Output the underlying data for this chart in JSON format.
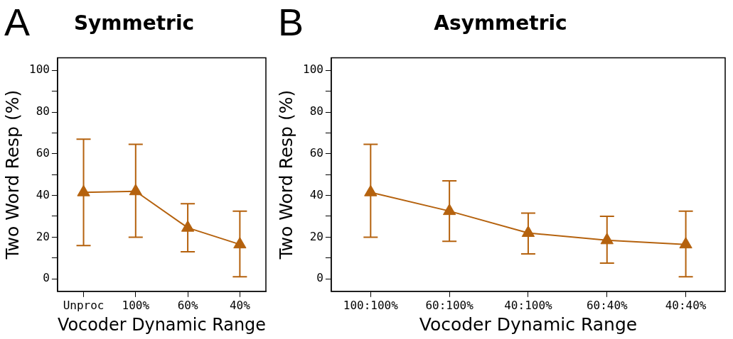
{
  "chart_data": [
    {
      "type": "line",
      "title": "Symmetric",
      "annotations": [
        "A"
      ],
      "xlabel": "Vocoder Dynamic Range",
      "ylabel": "Two Word Resp (%)",
      "categories": [
        "Unproc",
        "100%",
        "60%",
        "40%"
      ],
      "values": [
        41.5,
        42,
        24.5,
        16.5
      ],
      "errors": [
        [
          16,
          67
        ],
        [
          20,
          64.5
        ],
        [
          13,
          36
        ],
        [
          1,
          32.5
        ]
      ],
      "color": "#b5620e",
      "marker": "triangle",
      "ylim": [
        -6,
        106
      ],
      "yticks": [
        0,
        {
          "value": 10,
          "label": null
        },
        20,
        {
          "value": 30,
          "label": null
        },
        40,
        {
          "value": 50,
          "label": null
        },
        60,
        {
          "value": 70,
          "label": null
        },
        80,
        {
          "value": 90,
          "label": null
        },
        100
      ]
    },
    {
      "type": "line",
      "title": "Asymmetric",
      "annotations": [
        "B"
      ],
      "xlabel": "Vocoder Dynamic Range",
      "ylabel": "Two Word Resp (%)",
      "categories": [
        "100:100%",
        "60:100%",
        "40:100%",
        "60:40%",
        "40:40%"
      ],
      "values": [
        41.5,
        32.5,
        22,
        18.5,
        16.5
      ],
      "errors": [
        [
          20,
          64.5
        ],
        [
          18,
          47
        ],
        [
          12,
          31.5
        ],
        [
          7.5,
          30
        ],
        [
          1,
          32.5
        ]
      ],
      "color": "#b5620e",
      "marker": "triangle",
      "ylim": [
        -6,
        106
      ],
      "yticks": [
        0,
        {
          "value": 10,
          "label": null
        },
        20,
        {
          "value": 30,
          "label": null
        },
        40,
        {
          "value": 50,
          "label": null
        },
        60,
        {
          "value": 70,
          "label": null
        },
        80,
        {
          "value": 90,
          "label": null
        },
        100
      ]
    }
  ]
}
